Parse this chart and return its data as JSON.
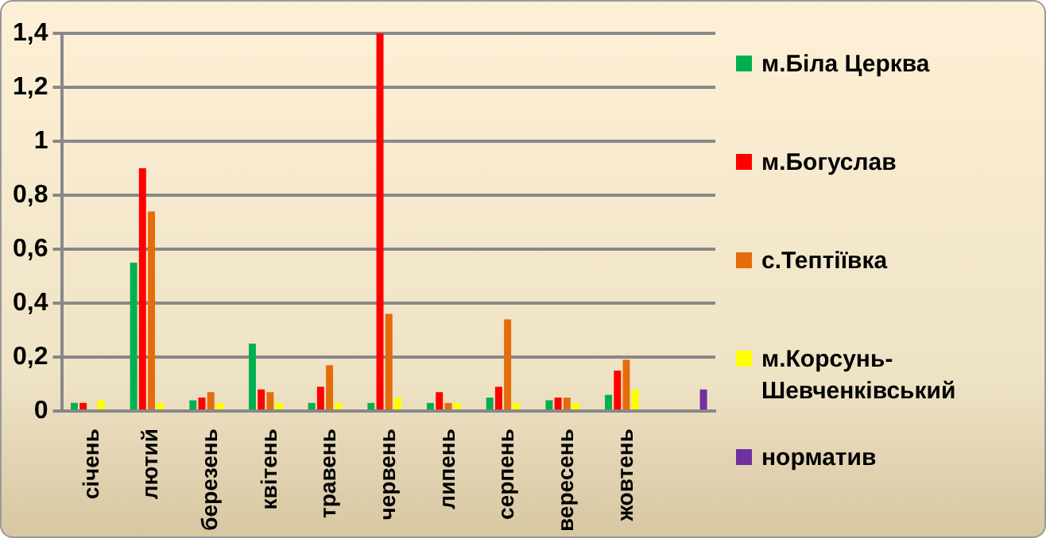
{
  "chart_data": {
    "type": "bar",
    "categories": [
      "січень",
      "лютий",
      "березень",
      "квітень",
      "травень",
      "червень",
      "липень",
      "серпень",
      "вересень",
      "жовтень",
      null
    ],
    "series": [
      {
        "name": "м.Біла Церква",
        "color": "#00b050",
        "values": [
          0.03,
          0.55,
          0.04,
          0.25,
          0.03,
          0.03,
          0.03,
          0.05,
          0.04,
          0.06,
          null
        ]
      },
      {
        "name": "м.Богуслав",
        "color": "#ff0000",
        "values": [
          0.03,
          0.9,
          0.05,
          0.08,
          0.09,
          1.4,
          0.07,
          0.09,
          0.05,
          0.15,
          null
        ]
      },
      {
        "name": "с.Тептіївка",
        "color": "#e46c0a",
        "values": [
          null,
          0.74,
          0.07,
          0.07,
          0.17,
          0.36,
          0.03,
          0.34,
          0.05,
          0.19,
          null
        ]
      },
      {
        "name": "м.Корсунь-Шевченківський",
        "color": "#ffff00",
        "values": [
          0.04,
          0.03,
          0.03,
          0.03,
          0.03,
          0.05,
          0.03,
          0.03,
          0.03,
          0.08,
          null
        ]
      },
      {
        "name": "норматив",
        "color": "#7030a0",
        "values": [
          null,
          null,
          null,
          null,
          null,
          null,
          null,
          null,
          null,
          null,
          0.08
        ]
      }
    ],
    "ylim": [
      0,
      1.4
    ],
    "yticks": [
      0,
      {
        "value": 0.2,
        "label": "0,2"
      },
      {
        "value": 0.4,
        "label": "0,4"
      },
      {
        "value": 0.6,
        "label": "0,6"
      },
      {
        "value": 0.8,
        "label": "0,8"
      },
      1,
      {
        "value": 1.2,
        "label": "1,2"
      },
      {
        "value": 1.4,
        "label": "1,4"
      }
    ],
    "grid": "y",
    "legend": "right"
  }
}
